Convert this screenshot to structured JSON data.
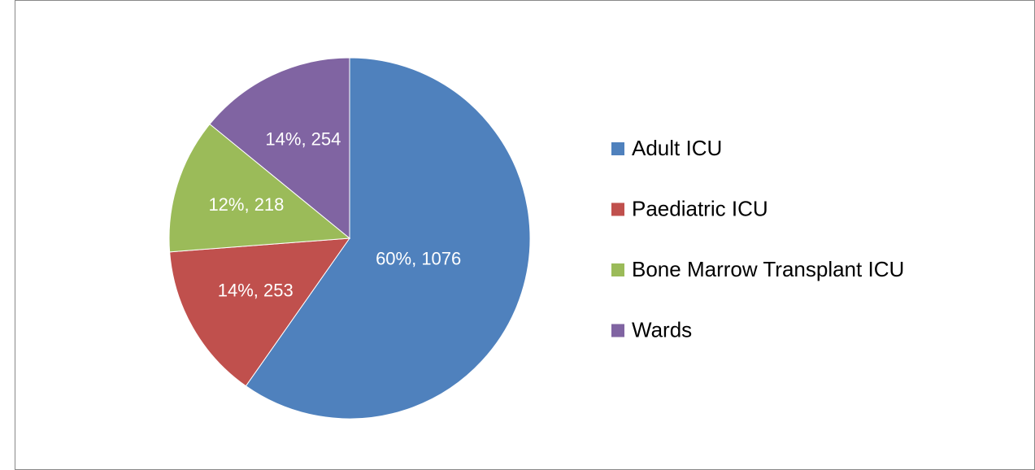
{
  "chart_data": {
    "type": "pie",
    "categories": [
      "Adult ICU",
      "Paediatric ICU",
      "Bone Marrow Transplant ICU",
      "Wards"
    ],
    "values": [
      1076,
      253,
      218,
      254
    ],
    "value_labels": [
      "60%, 1076",
      "14%, 253",
      "12%, 218",
      "14%, 254"
    ],
    "colors": [
      "#4f81bd",
      "#c0504d",
      "#9bbb59",
      "#8064a2"
    ],
    "legend": "right"
  }
}
